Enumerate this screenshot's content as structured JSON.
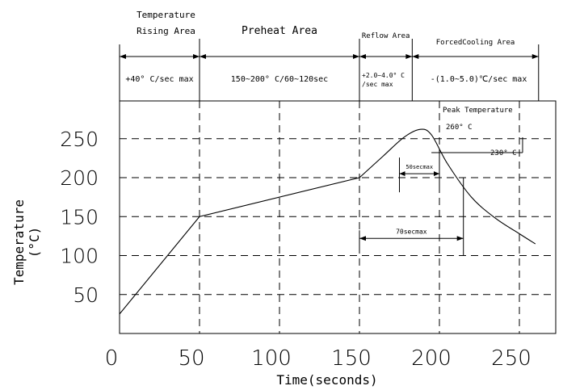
{
  "chart_data": {
    "type": "line",
    "title": "",
    "xlabel": "Time(seconds)",
    "ylabel": "Temperature",
    "ylabel_unit": "(°C)",
    "xlim": [
      0,
      270
    ],
    "ylim": [
      0,
      300
    ],
    "x_ticks": [
      "0",
      "50",
      "100",
      "150",
      "200",
      "250"
    ],
    "y_ticks": [
      "50",
      "100",
      "150",
      "200",
      "250"
    ],
    "grid": "dashed",
    "series": [
      {
        "x": [
          0,
          50,
          150,
          165,
          178,
          188,
          195,
          205,
          220,
          235,
          250,
          260
        ],
        "y": [
          25,
          150,
          200,
          228,
          252,
          262,
          255,
          218,
          175,
          148,
          128,
          115
        ]
      }
    ],
    "zones": [
      {
        "title_line1": "Temperature",
        "title_line2": "Rising Area",
        "spec": "+40° C/sec max",
        "x_start": 0,
        "x_end": 50
      },
      {
        "title_line1": "Preheat Area",
        "title_line2": "",
        "spec": "150~200° C/60~120sec",
        "x_start": 50,
        "x_end": 150
      },
      {
        "title_line1": "Reflow Area",
        "title_line2": "",
        "spec_line1": "+2.0~4.0° C",
        "spec_line2": "/sec max",
        "x_start": 150,
        "x_end": 183
      },
      {
        "title_line1": "ForcedCooling Area",
        "title_line2": "",
        "spec": "-(1.0~5.0)℃/sec max",
        "x_start": 183,
        "x_end": 262
      }
    ],
    "annotations": {
      "peak_label": "Peak Temperature",
      "peak_value": "260° C",
      "level_230": "230° C",
      "window_50": {
        "label": "50secmax",
        "x_start": 175,
        "x_end": 200,
        "y": 205
      },
      "window_70": {
        "label": "70secmax",
        "x_start": 150,
        "x_end": 215,
        "y": 122
      }
    }
  }
}
